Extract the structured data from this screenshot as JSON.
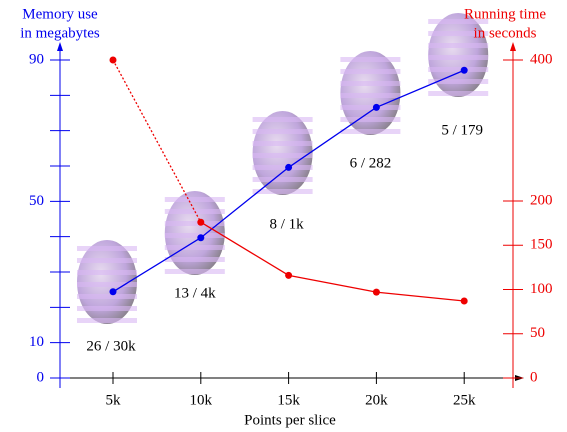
{
  "chart_data": {
    "type": "line",
    "x_label": "Points per slice",
    "y_label": [
      "Memory use",
      "in megabytes"
    ],
    "y2_label": [
      "Running time",
      "in seconds"
    ],
    "categories": [
      "5k",
      "10k",
      "15k",
      "20k",
      "25k"
    ],
    "series": [
      {
        "name": "Memory use",
        "color": "#0000ee",
        "values": [
          24.4,
          39.7,
          59.6,
          76.6,
          87.1
        ]
      },
      {
        "name": "Running time",
        "color": "#ee0000",
        "axis": "y2",
        "values": [
          400,
          176,
          116,
          97,
          87
        ],
        "dotted_first_segment": true
      }
    ],
    "annotations": [
      "26 / 30k",
      "13 / 4k",
      "8 / 1k",
      "6 / 282",
      "5 / 179"
    ],
    "ylim": [
      0,
      90
    ],
    "yticks": [
      0,
      10,
      50,
      90
    ],
    "yminor_ticks": [
      20,
      30,
      40,
      60,
      70,
      80
    ],
    "y2lim": [
      0,
      400
    ],
    "y2ticks": [
      0,
      50,
      100,
      150,
      200,
      400
    ],
    "y2_break": 200
  }
}
